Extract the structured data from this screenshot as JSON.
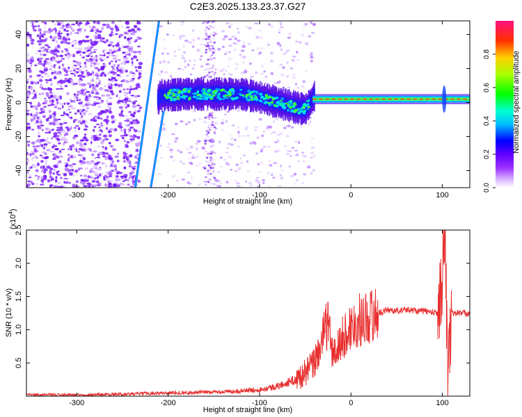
{
  "title": "C2E3.2025.133.23.37.G27",
  "chart_data": [
    {
      "type": "heatmap",
      "xlabel": "Height of straight line (km)",
      "ylabel": "Frequency (Hz)",
      "xlim": [
        -355,
        130
      ],
      "ylim": [
        -50,
        48
      ],
      "xticks": [
        -300,
        -200,
        -100,
        0,
        100
      ],
      "yticks": [
        -40,
        -20,
        0,
        20,
        40
      ],
      "grid": false,
      "colorbar": {
        "label": "Normalized spectral amplitude",
        "range": [
          0,
          1
        ],
        "ticks": [
          "0.0",
          "0.2",
          "0.4",
          "0.6",
          "0.8"
        ]
      },
      "ridge": {
        "x": [
          -210,
          -180,
          -150,
          -120,
          -100,
          -80,
          -60,
          -50,
          -40,
          -30,
          -20,
          0,
          20,
          50,
          80,
          100,
          130
        ],
        "y": [
          4,
          5,
          5,
          5,
          3,
          0,
          -3,
          -4,
          4,
          3,
          2,
          2,
          2,
          2,
          2,
          2,
          2
        ]
      },
      "diagonal_lines": [
        {
          "x": [
            -236,
            -210
          ],
          "y": [
            -50,
            48
          ]
        },
        {
          "x": [
            -219,
            -205
          ],
          "y": [
            -50,
            -5
          ]
        }
      ]
    },
    {
      "type": "line",
      "xlabel": "Height of straight line (km)",
      "ylabel": "SNR (10 * v/v)",
      "y_multiplier": "(x10",
      "y_multiplier_exp": "4",
      "y_multiplier_close": ")",
      "xlim": [
        -355,
        130
      ],
      "ylim": [
        0,
        2.5
      ],
      "xticks": [
        -300,
        -200,
        -100,
        0,
        100
      ],
      "yticks": [
        0.5,
        1.0,
        1.5,
        2.0,
        2.5
      ],
      "ytick_labels": [
        "0.5",
        "1.0",
        "1.5",
        "2.0",
        "2.5"
      ],
      "grid": false,
      "color": "#e83030",
      "series": [
        {
          "x": [
            -355,
            -300,
            -250,
            -200,
            -150,
            -120,
            -100,
            -80,
            -60,
            -50,
            -40,
            -35,
            -30,
            -25,
            -20,
            -15,
            -10,
            0,
            10,
            20,
            30,
            40,
            50,
            60,
            80,
            95,
            100,
            103,
            106,
            110,
            120,
            130
          ],
          "y": [
            0.02,
            0.02,
            0.03,
            0.05,
            0.06,
            0.08,
            0.1,
            0.15,
            0.25,
            0.35,
            0.5,
            0.7,
            0.9,
            1.15,
            0.6,
            0.7,
            0.85,
            1.05,
            1.15,
            1.2,
            1.25,
            1.3,
            1.28,
            1.3,
            1.28,
            1.25,
            1.8,
            2.5,
            0.2,
            1.25,
            1.25,
            1.25
          ]
        }
      ]
    }
  ]
}
